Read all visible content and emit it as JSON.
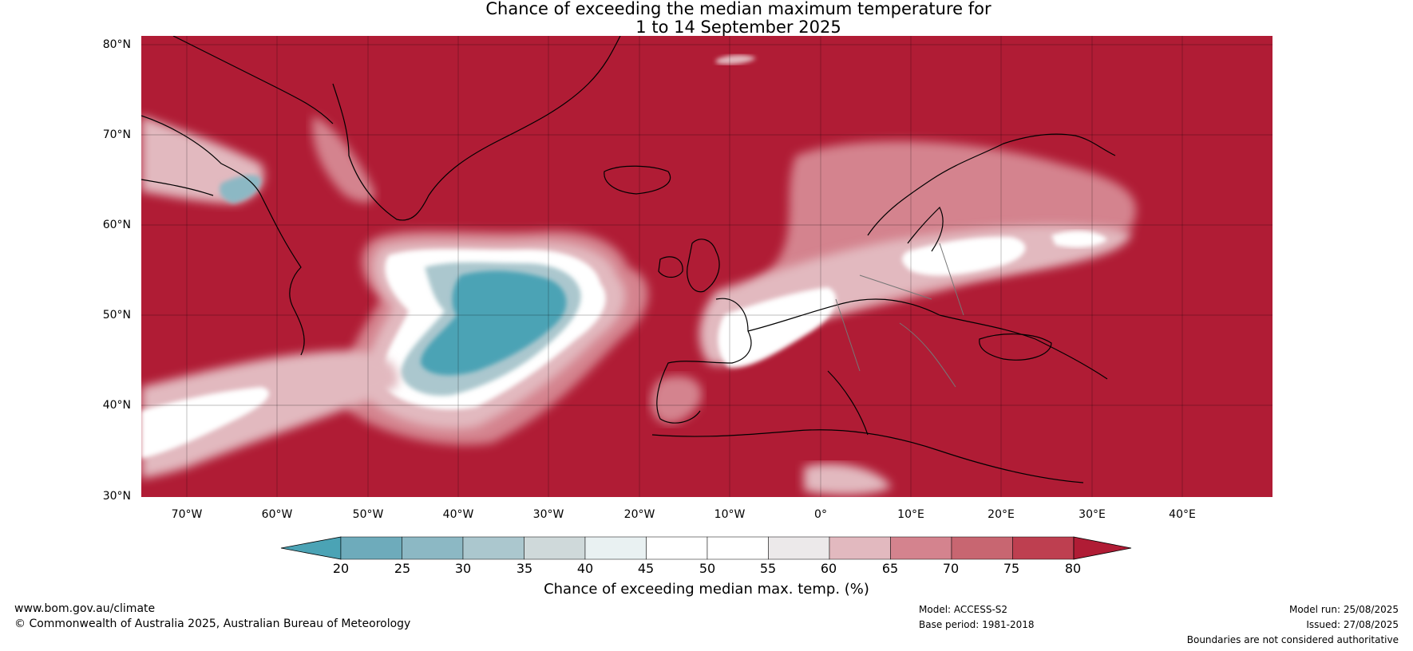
{
  "title": {
    "line1": "Chance of exceeding the median maximum temperature for",
    "line2": "1 to 14 September 2025"
  },
  "map": {
    "lat_labels": [
      "80°N",
      "70°N",
      "60°N",
      "50°N",
      "40°N",
      "30°N"
    ],
    "lon_labels": [
      "70°W",
      "60°W",
      "50°W",
      "40°W",
      "30°W",
      "20°W",
      "10°W",
      "0°",
      "10°E",
      "20°E",
      "30°E",
      "40°E"
    ],
    "background_color": "#b01c35"
  },
  "colorbar": {
    "ticks": [
      "20",
      "25",
      "30",
      "35",
      "40",
      "45",
      "50",
      "55",
      "60",
      "65",
      "70",
      "75",
      "80"
    ],
    "colors": [
      "#4ba3b5",
      "#6eabbb",
      "#8cb8c4",
      "#abc7ce",
      "#cfd9da",
      "#e9f1f2",
      "#ffffff",
      "#ffffff",
      "#ece9ea",
      "#e2b9bf",
      "#d4838e",
      "#c86671",
      "#be3f50",
      "#b01c35"
    ],
    "label": "Chance of exceeding median max. temp. (%)"
  },
  "footer": {
    "website": "www.bom.gov.au/climate",
    "copyright": "© Commonwealth of Australia 2025, Australian Bureau of Meteorology",
    "model": "Model: ACCESS-S2",
    "base_period": "Base period: 1981-2018",
    "model_run": "Model run: 25/08/2025",
    "issued": "Issued: 27/08/2025",
    "disclaimer": "Boundaries are not considered authoritative"
  }
}
